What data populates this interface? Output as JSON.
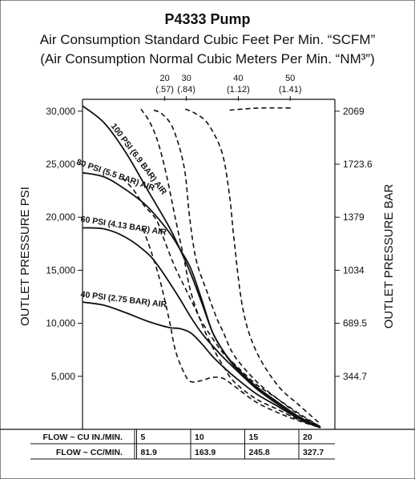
{
  "header": {
    "title": "P4333 Pump",
    "subtitle_1": "Air Consumption Standard Cubic Feet Per Min. “SCFM”",
    "subtitle_2": "(Air Consumption Normal Cubic Meters Per Min. “NM³”)"
  },
  "chart_data": {
    "type": "line",
    "title": "P4333 Pump",
    "xlabel": "",
    "ylabel": "OUTLET PRESSURE PSI",
    "ylabel_right": "OUTLET PRESSURE BAR",
    "xlim": [
      0,
      22.6
    ],
    "ylim": [
      0,
      31000
    ],
    "grid": false,
    "y_ticks": [
      {
        "value": 5000,
        "label": "5,000"
      },
      {
        "value": 10000,
        "label": "10,000"
      },
      {
        "value": 15000,
        "label": "15,000"
      },
      {
        "value": 20000,
        "label": "20,000"
      },
      {
        "value": 25000,
        "label": "25,000"
      },
      {
        "value": 30000,
        "label": "30,000"
      }
    ],
    "y_right_ticks": [
      {
        "value": 5000,
        "label": "344.7"
      },
      {
        "value": 10000,
        "label": "689.5"
      },
      {
        "value": 15000,
        "label": "1034"
      },
      {
        "value": 20000,
        "label": "1379"
      },
      {
        "value": 25000,
        "label": "1723.6"
      },
      {
        "value": 30000,
        "label": "2069"
      }
    ],
    "top_ticks": [
      {
        "x": 7.6,
        "label": "20",
        "sublabel": "(.57)"
      },
      {
        "x": 9.6,
        "label": "30",
        "sublabel": "(.84)"
      },
      {
        "x": 14.4,
        "label": "40",
        "sublabel": "(1.12)"
      },
      {
        "x": 19.2,
        "label": "50",
        "sublabel": "(1.41)"
      }
    ],
    "flow_table": {
      "row1_label": "FLOW ~ CU IN./MIN.",
      "row2_label": "FLOW ~ CC/MIN.",
      "columns": [
        {
          "x": 5,
          "cu_in": "5",
          "cc": "81.9"
        },
        {
          "x": 10,
          "cu_in": "10",
          "cc": "163.9"
        },
        {
          "x": 15,
          "cu_in": "15",
          "cc": "245.8"
        },
        {
          "x": 20,
          "cu_in": "20",
          "cc": "327.7"
        }
      ]
    },
    "series": [
      {
        "name": "100 PSI (6.9 BAR) AIR",
        "style": "solid",
        "x": [
          0,
          2,
          4,
          6,
          8,
          9,
          10,
          11,
          12,
          13,
          14,
          16,
          18,
          20,
          22
        ],
        "y": [
          30500,
          28900,
          26100,
          22600,
          19100,
          17000,
          14700,
          12000,
          9200,
          7400,
          6100,
          4100,
          2600,
          1200,
          200
        ]
      },
      {
        "name": "80 PSI (5.5 BAR) AIR",
        "style": "solid",
        "x": [
          0,
          2,
          4,
          6,
          8,
          9,
          10,
          11,
          12,
          13,
          14,
          16,
          18,
          20,
          22
        ],
        "y": [
          24200,
          23800,
          22600,
          21000,
          18600,
          17000,
          15200,
          12300,
          9200,
          7400,
          6000,
          4000,
          2500,
          1100,
          200
        ]
      },
      {
        "name": "60 PSI (4.13 BAR) AIR",
        "style": "solid",
        "x": [
          0,
          2,
          4,
          6,
          7,
          8,
          9,
          10,
          11,
          12,
          13,
          14,
          16,
          18,
          20,
          22
        ],
        "y": [
          19000,
          18900,
          18100,
          16600,
          15400,
          13900,
          12300,
          10600,
          9100,
          7900,
          6800,
          5800,
          3900,
          2400,
          1100,
          200
        ]
      },
      {
        "name": "40 PSI (2.75 BAR) AIR",
        "style": "solid",
        "x": [
          0,
          2,
          4,
          6,
          8,
          9,
          10,
          11,
          12,
          13,
          14,
          16,
          18,
          20,
          22
        ],
        "y": [
          12000,
          11700,
          11000,
          10200,
          9600,
          9500,
          9100,
          8100,
          6900,
          5900,
          5000,
          3400,
          2200,
          1000,
          150
        ]
      },
      {
        "name": "",
        "style": "dashed",
        "x": [
          5.4,
          6.2,
          7,
          7.8,
          8.6,
          9.4,
          10,
          11,
          12,
          13,
          14,
          16,
          18,
          20,
          22
        ],
        "y": [
          30200,
          29000,
          27000,
          23800,
          19800,
          16000,
          13000,
          10000,
          7800,
          6000,
          4500,
          2900,
          1900,
          900,
          150
        ]
      },
      {
        "name": "",
        "style": "dashed",
        "x": [
          6.6,
          7.4,
          8.4,
          9.4,
          9.9,
          10.5,
          11.5,
          12.4,
          13,
          14,
          16,
          18,
          20,
          22
        ],
        "y": [
          30100,
          29700,
          28300,
          24700,
          20000,
          16000,
          13000,
          10500,
          9200,
          7000,
          4600,
          2900,
          1400,
          250
        ]
      },
      {
        "name": "",
        "style": "dashed",
        "x": [
          9.5,
          10.4,
          11.6,
          12.9,
          13.6,
          14,
          14.8,
          16,
          18,
          20,
          22
        ],
        "y": [
          30200,
          29800,
          28800,
          26100,
          22000,
          18000,
          11500,
          7500,
          4200,
          2300,
          500
        ]
      },
      {
        "name": "",
        "style": "dashed",
        "x": [
          13.6,
          14.8,
          16.5,
          19.3
        ],
        "y": [
          30100,
          30200,
          30300,
          30300
        ]
      },
      {
        "name": "",
        "style": "dashed",
        "x": [
          3.7,
          4.7,
          5.7,
          6.8,
          7.5,
          8.5,
          9.5,
          10.5,
          11,
          12,
          13,
          14,
          16,
          18,
          20,
          22
        ],
        "y": [
          23700,
          22600,
          21100,
          19800,
          18000,
          15400,
          13300,
          11200,
          10200,
          8600,
          7200,
          6200,
          4300,
          2900,
          1500,
          250
        ]
      },
      {
        "name": "",
        "style": "dashed",
        "x": [
          5.6,
          6.4,
          7.2,
          8,
          8.6,
          9.4,
          10,
          11,
          12,
          13,
          14,
          16,
          18,
          20,
          22
        ],
        "y": [
          18900,
          16600,
          13900,
          10400,
          7400,
          5300,
          4500,
          4600,
          4900,
          4800,
          4100,
          2600,
          1600,
          800,
          150
        ]
      }
    ]
  },
  "colors": {
    "line": "#111111",
    "background": "#ffffff"
  }
}
